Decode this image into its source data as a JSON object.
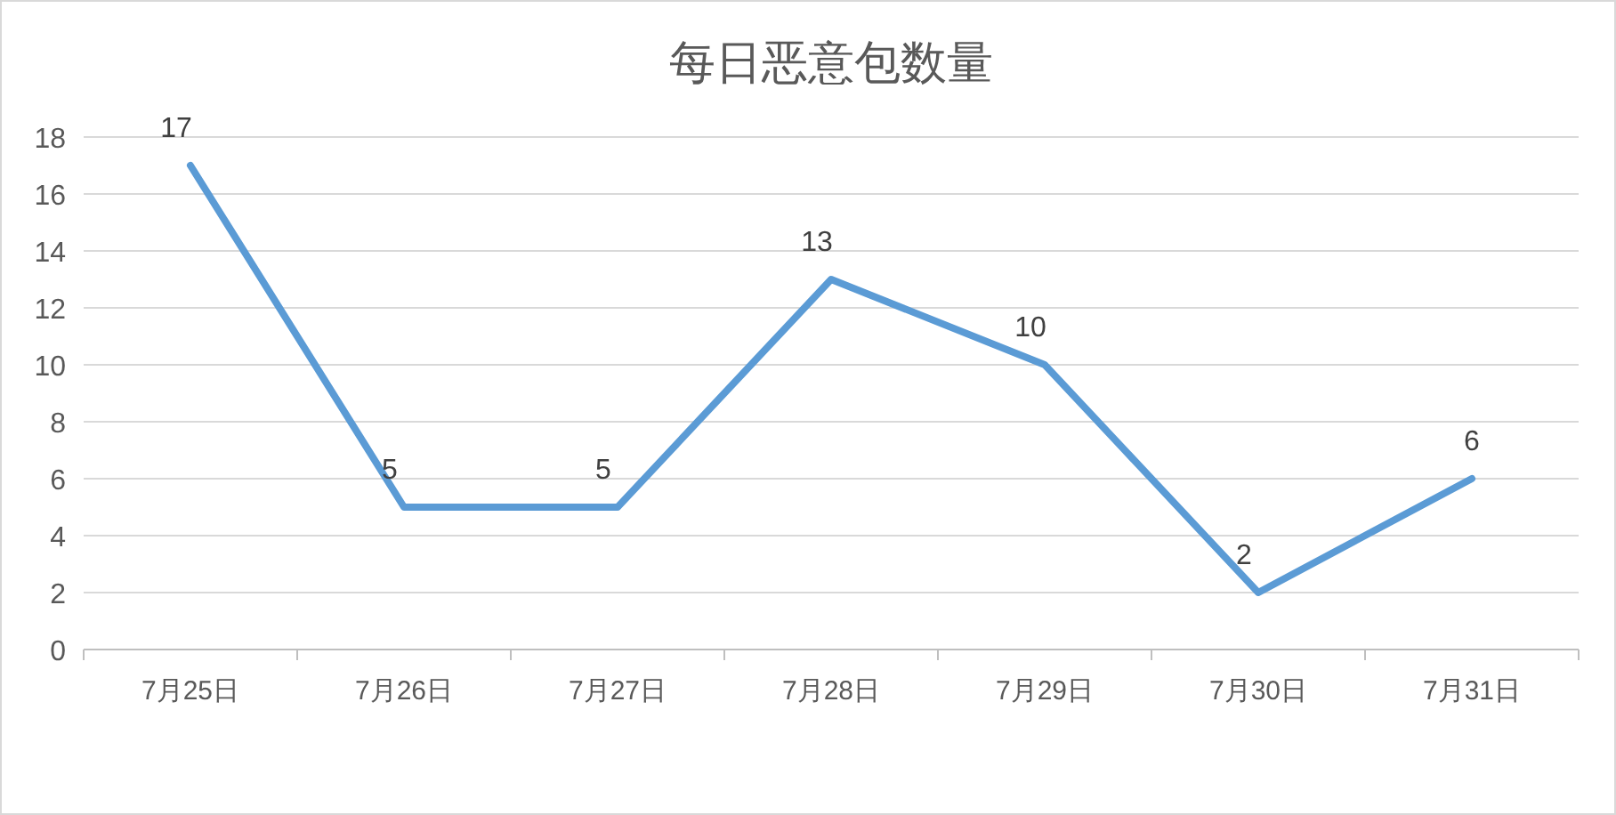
{
  "chart_data": {
    "type": "line",
    "title": "每日恶意包数量",
    "categories": [
      "7月25日",
      "7月26日",
      "7月27日",
      "7月28日",
      "7月29日",
      "7月30日",
      "7月31日"
    ],
    "series": [
      {
        "color": "#5b9bd5",
        "values": [
          17,
          5,
          5,
          13,
          10,
          2,
          6
        ]
      }
    ],
    "ylim": [
      0,
      18
    ],
    "yticks": [
      0,
      2,
      4,
      6,
      8,
      10,
      12,
      14,
      16,
      18
    ],
    "grid": "y",
    "data_labels": true,
    "marker": "none",
    "line_style": "solid"
  }
}
